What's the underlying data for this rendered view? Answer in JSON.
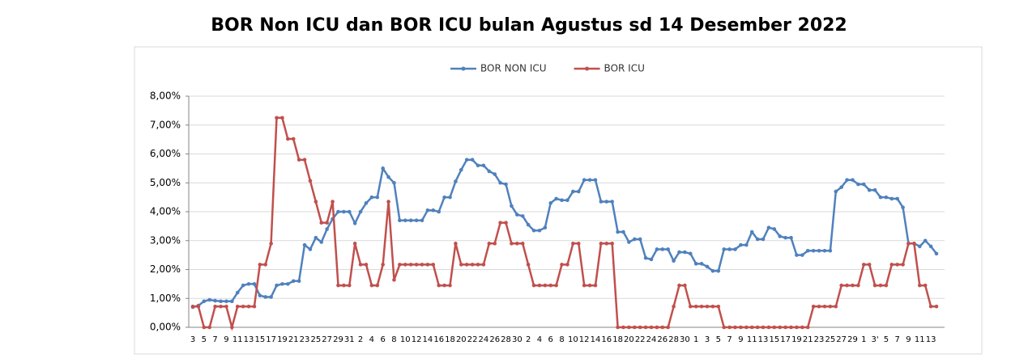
{
  "chart_data": {
    "type": "line",
    "title": "BOR Non ICU dan BOR ICU bulan Agustus sd 14 Desember 2022",
    "categories": [
      "3",
      null,
      "5",
      null,
      "7",
      null,
      "9",
      null,
      "11",
      null,
      "13",
      null,
      "15",
      null,
      "17",
      null,
      "19",
      null,
      "21",
      null,
      "23",
      null,
      "25",
      null,
      "27",
      null,
      "29",
      null,
      "31",
      null,
      "2",
      null,
      "4",
      null,
      "6",
      null,
      "8",
      null,
      "10",
      null,
      "12",
      null,
      "14",
      null,
      "16",
      null,
      "18",
      null,
      "20",
      null,
      "22",
      null,
      "24",
      null,
      "26",
      null,
      "28",
      null,
      "30",
      null,
      "2",
      null,
      "4",
      null,
      "6",
      null,
      "8",
      null,
      "10",
      null,
      "12",
      null,
      "14",
      null,
      "16",
      null,
      "18",
      null,
      "20",
      null,
      "22",
      null,
      "24",
      null,
      "26",
      null,
      "28",
      null,
      "30",
      null,
      "1",
      null,
      "3",
      null,
      "5",
      null,
      "7",
      null,
      "9",
      null,
      "11",
      null,
      "13",
      null,
      "15",
      null,
      "17",
      null,
      "19",
      null,
      "21",
      null,
      "23",
      null,
      "25",
      null,
      "27",
      null,
      "29",
      null,
      "1",
      null,
      "3'",
      null,
      "5",
      null,
      "7",
      null,
      "9",
      null,
      "11",
      null,
      "13",
      null
    ],
    "series": [
      {
        "name": "BOR NON ICU",
        "color": "#4f81bd",
        "values": [
          0.7,
          0.75,
          0.9,
          0.95,
          0.92,
          0.9,
          0.9,
          0.9,
          1.2,
          1.45,
          1.5,
          1.5,
          1.1,
          1.05,
          1.05,
          1.45,
          1.5,
          1.5,
          1.6,
          1.6,
          2.85,
          2.7,
          3.1,
          2.95,
          3.4,
          3.75,
          4.0,
          4.0,
          4.0,
          3.6,
          4.0,
          4.3,
          4.5,
          4.5,
          5.5,
          5.2,
          5.0,
          3.7,
          3.7,
          3.7,
          3.7,
          3.7,
          4.05,
          4.05,
          4.0,
          4.5,
          4.5,
          5.05,
          5.45,
          5.8,
          5.8,
          5.6,
          5.6,
          5.4,
          5.3,
          5.0,
          4.95,
          4.2,
          3.9,
          3.85,
          3.55,
          3.35,
          3.35,
          3.45,
          4.3,
          4.45,
          4.4,
          4.4,
          4.7,
          4.7,
          5.1,
          5.1,
          5.1,
          4.35,
          4.35,
          4.35,
          3.3,
          3.3,
          2.95,
          3.05,
          3.05,
          2.4,
          2.35,
          2.7,
          2.7,
          2.7,
          2.3,
          2.6,
          2.6,
          2.55,
          2.2,
          2.2,
          2.1,
          1.95,
          1.95,
          2.7,
          2.7,
          2.7,
          2.85,
          2.85,
          3.3,
          3.05,
          3.05,
          3.45,
          3.4,
          3.15,
          3.1,
          3.1,
          2.5,
          2.5,
          2.65,
          2.65,
          2.65,
          2.65,
          2.65,
          4.7,
          4.85,
          5.1,
          5.1,
          4.95,
          4.95,
          4.75,
          4.75,
          4.5,
          4.5,
          4.45,
          4.45,
          4.15,
          2.9,
          2.9,
          2.8,
          3.0,
          2.8,
          2.55
        ]
      },
      {
        "name": "BOR ICU",
        "color": "#c0504d",
        "values": [
          0.72,
          0.72,
          0,
          0,
          0.72,
          0.72,
          0.72,
          0,
          0.72,
          0.72,
          0.72,
          0.72,
          2.17,
          2.17,
          2.9,
          7.25,
          7.25,
          6.52,
          6.52,
          5.8,
          5.8,
          5.07,
          4.35,
          3.62,
          3.62,
          4.35,
          1.45,
          1.45,
          1.45,
          2.9,
          2.17,
          2.17,
          1.45,
          1.45,
          2.17,
          4.35,
          1.64,
          2.17,
          2.17,
          2.17,
          2.17,
          2.17,
          2.17,
          2.17,
          1.45,
          1.45,
          1.45,
          2.9,
          2.17,
          2.17,
          2.17,
          2.17,
          2.17,
          2.9,
          2.9,
          3.62,
          3.62,
          2.9,
          2.9,
          2.9,
          2.17,
          1.45,
          1.45,
          1.45,
          1.45,
          1.45,
          2.17,
          2.17,
          2.9,
          2.9,
          1.45,
          1.45,
          1.45,
          2.9,
          2.9,
          2.9,
          0,
          0,
          0,
          0,
          0,
          0,
          0,
          0,
          0,
          0,
          0.72,
          1.45,
          1.45,
          0.72,
          0.72,
          0.72,
          0.72,
          0.72,
          0.72,
          0,
          0,
          0,
          0,
          0,
          0,
          0,
          0,
          0,
          0,
          0,
          0,
          0,
          0,
          0,
          0,
          0.72,
          0.72,
          0.72,
          0.72,
          0.72,
          1.45,
          1.45,
          1.45,
          1.45,
          2.17,
          2.17,
          1.45,
          1.45,
          1.45,
          2.17,
          2.17,
          2.17,
          2.9,
          2.9,
          1.45,
          1.45,
          0.72,
          0.72
        ]
      }
    ],
    "ylim": [
      0,
      8
    ],
    "yticks": [
      {
        "value": 0,
        "label": "0,00%"
      },
      {
        "value": 1,
        "label": "1,00%"
      },
      {
        "value": 2,
        "label": "2,00%"
      },
      {
        "value": 3,
        "label": "3,00%"
      },
      {
        "value": 4,
        "label": "4,00%"
      },
      {
        "value": 5,
        "label": "5,00%"
      },
      {
        "value": 6,
        "label": "6,00%"
      },
      {
        "value": 7,
        "label": "7,00%"
      },
      {
        "value": 8,
        "label": "8,00%"
      }
    ],
    "grid": true,
    "legend": "top"
  }
}
